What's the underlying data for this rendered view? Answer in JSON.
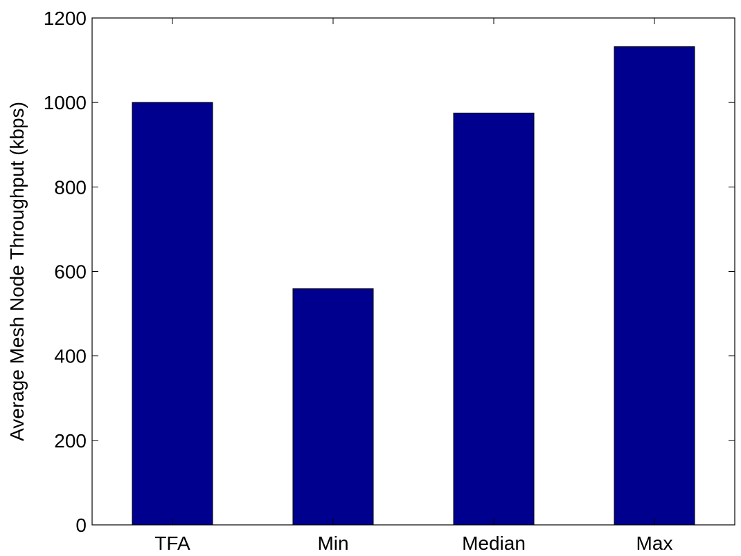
{
  "chart_data": {
    "type": "bar",
    "title": "",
    "xlabel": "",
    "ylabel": "Average Mesh Node Throughput (kbps)",
    "categories": [
      "TFA",
      "Min",
      "Median",
      "Max"
    ],
    "values": [
      1000,
      559,
      975,
      1132
    ],
    "ylim": [
      0,
      1200
    ],
    "yticks": [
      0,
      200,
      400,
      600,
      800,
      1000,
      1200
    ],
    "grid": false,
    "bar_color": "#00008F"
  }
}
